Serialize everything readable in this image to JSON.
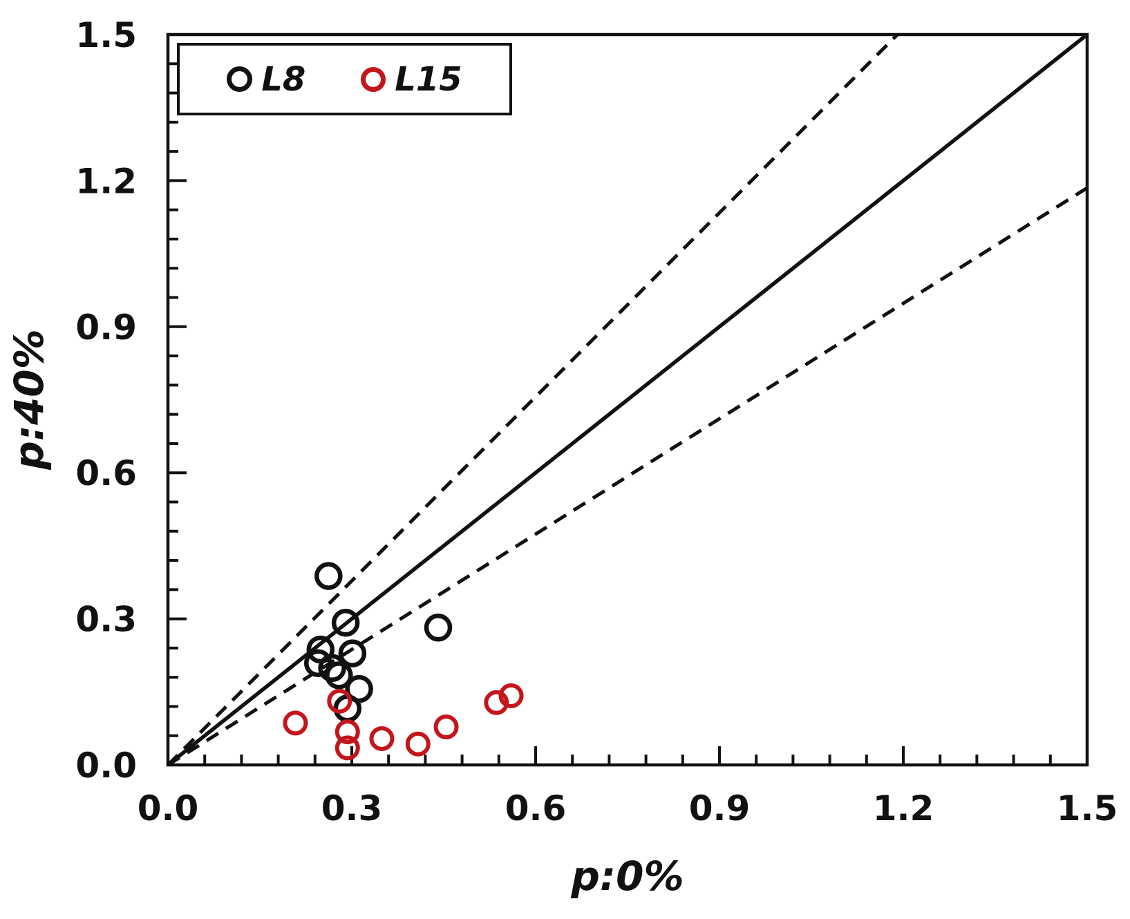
{
  "figure": {
    "background": "#ffffff",
    "axis_color": "#111111",
    "accent_red": "#c3161c"
  },
  "legend": {
    "position": "top-left",
    "items": [
      {
        "label": "L8",
        "marker": "open-circle-icon",
        "color": "#111111"
      },
      {
        "label": "L15",
        "marker": "open-circle-icon",
        "color": "#c3161c"
      }
    ]
  },
  "chart_data": {
    "type": "scatter",
    "title": "",
    "xlabel": "p:0%",
    "ylabel": "p:40%",
    "xlim": [
      0,
      1.5
    ],
    "ylim": [
      0,
      1.5
    ],
    "x_tick_values": [
      0,
      0.3,
      0.6,
      0.9,
      1.2,
      1.5
    ],
    "x_tick_labels": [
      "0.0",
      "0.3",
      "0.6",
      "0.9",
      "1.2",
      "1.5"
    ],
    "y_tick_values": [
      0,
      0.3,
      0.6,
      0.9,
      1.2,
      1.5
    ],
    "y_tick_labels": [
      "0.0",
      "0.3",
      "0.6",
      "0.9",
      "1.2",
      "1.5"
    ],
    "minor_tick_step": 0.06,
    "grid": false,
    "legend_position": "top-left",
    "series": [
      {
        "name": "L8",
        "marker": "open-circle",
        "color": "#111111",
        "points": [
          [
            0.262,
            0.388
          ],
          [
            0.29,
            0.292
          ],
          [
            0.249,
            0.237
          ],
          [
            0.301,
            0.229
          ],
          [
            0.245,
            0.209
          ],
          [
            0.268,
            0.199
          ],
          [
            0.279,
            0.184
          ],
          [
            0.312,
            0.156
          ],
          [
            0.293,
            0.116
          ],
          [
            0.441,
            0.282
          ]
        ]
      },
      {
        "name": "L15",
        "marker": "open-circle",
        "color": "#c3161c",
        "points": [
          [
            0.208,
            0.086
          ],
          [
            0.28,
            0.131
          ],
          [
            0.293,
            0.068
          ],
          [
            0.293,
            0.035
          ],
          [
            0.349,
            0.054
          ],
          [
            0.408,
            0.043
          ],
          [
            0.454,
            0.078
          ],
          [
            0.536,
            0.128
          ],
          [
            0.56,
            0.142
          ]
        ]
      }
    ],
    "reference_lines": [
      {
        "name": "identity-line",
        "style": "solid",
        "slope": 1.0
      },
      {
        "name": "upper-bound",
        "style": "dashed",
        "slope": 1.26
      },
      {
        "name": "lower-bound",
        "style": "dashed",
        "slope": 0.79
      }
    ]
  }
}
